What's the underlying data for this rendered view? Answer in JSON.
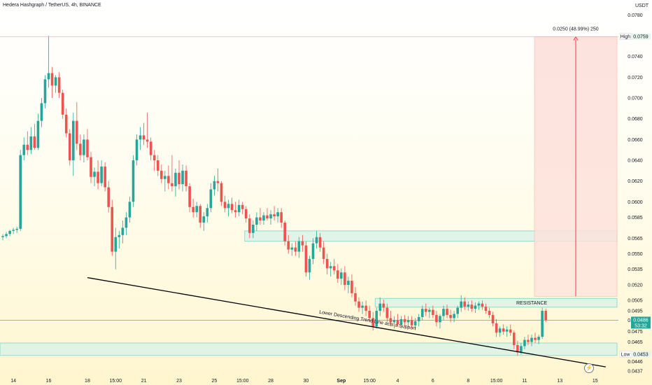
{
  "header": {
    "title": "Hedera Hashgraph / TetherUS, 4h, BINANCE",
    "unit": "USDT"
  },
  "colors": {
    "up": "#26a69a",
    "down": "#ef5350",
    "zone_fill": "#d7f2ea",
    "zone_stroke": "#7fd3c8",
    "measure_fill": "#fde1db",
    "measure_line": "#f23645",
    "price_tag": "#26a69a",
    "trend_line": "#000000"
  },
  "chart_data": {
    "type": "candlestick",
    "title": "Hedera Hashgraph / TetherUS, 4h, BINANCE",
    "ylabel": "USDT",
    "ylim": [
      0.0433,
      0.0785
    ],
    "y_ticks": [
      "0.0780",
      "0.0760",
      "0.0740",
      "0.0720",
      "0.0700",
      "0.0680",
      "0.0660",
      "0.0640",
      "0.0620",
      "0.0600",
      "0.0585",
      "0.0565",
      "0.0550",
      "0.0535",
      "0.0520",
      "0.0505",
      "0.0495",
      "0.0486",
      "0.0475",
      "0.0465",
      "0.0453",
      "0.0446",
      "0.0437"
    ],
    "x_ticks": [
      "14",
      "16",
      "18",
      "15:00",
      "21",
      "23",
      "25",
      "15:00",
      "28",
      "30",
      "Sep",
      "15:00",
      "4",
      "6",
      "8",
      "15:00",
      "11",
      "13",
      "15"
    ],
    "candles": [
      {
        "o": 0.0566,
        "h": 0.0569,
        "l": 0.0563,
        "c": 0.0567
      },
      {
        "o": 0.0567,
        "h": 0.0571,
        "l": 0.0565,
        "c": 0.0569
      },
      {
        "o": 0.0569,
        "h": 0.0573,
        "l": 0.0567,
        "c": 0.0572
      },
      {
        "o": 0.0572,
        "h": 0.0575,
        "l": 0.0569,
        "c": 0.0573
      },
      {
        "o": 0.0573,
        "h": 0.0576,
        "l": 0.057,
        "c": 0.0574
      },
      {
        "o": 0.0574,
        "h": 0.065,
        "l": 0.0572,
        "c": 0.0645
      },
      {
        "o": 0.0645,
        "h": 0.0662,
        "l": 0.064,
        "c": 0.0655
      },
      {
        "o": 0.0655,
        "h": 0.0668,
        "l": 0.0645,
        "c": 0.065
      },
      {
        "o": 0.065,
        "h": 0.0672,
        "l": 0.0646,
        "c": 0.0663
      },
      {
        "o": 0.0663,
        "h": 0.0675,
        "l": 0.065,
        "c": 0.0652
      },
      {
        "o": 0.0652,
        "h": 0.0685,
        "l": 0.065,
        "c": 0.0678
      },
      {
        "o": 0.0678,
        "h": 0.07,
        "l": 0.0672,
        "c": 0.0695
      },
      {
        "o": 0.0695,
        "h": 0.0722,
        "l": 0.069,
        "c": 0.0718
      },
      {
        "o": 0.0718,
        "h": 0.076,
        "l": 0.071,
        "c": 0.0724
      },
      {
        "o": 0.0724,
        "h": 0.073,
        "l": 0.07,
        "c": 0.0712
      },
      {
        "o": 0.0712,
        "h": 0.0722,
        "l": 0.0705,
        "c": 0.072
      },
      {
        "o": 0.072,
        "h": 0.0725,
        "l": 0.07,
        "c": 0.0705
      },
      {
        "o": 0.0705,
        "h": 0.0708,
        "l": 0.068,
        "c": 0.0684
      },
      {
        "o": 0.0684,
        "h": 0.069,
        "l": 0.0662,
        "c": 0.0666
      },
      {
        "o": 0.0666,
        "h": 0.067,
        "l": 0.0635,
        "c": 0.064
      },
      {
        "o": 0.064,
        "h": 0.0686,
        "l": 0.0625,
        "c": 0.0678
      },
      {
        "o": 0.0678,
        "h": 0.0696,
        "l": 0.065,
        "c": 0.0656
      },
      {
        "o": 0.0656,
        "h": 0.0665,
        "l": 0.064,
        "c": 0.0645
      },
      {
        "o": 0.0645,
        "h": 0.0665,
        "l": 0.0638,
        "c": 0.066
      },
      {
        "o": 0.066,
        "h": 0.067,
        "l": 0.064,
        "c": 0.0643
      },
      {
        "o": 0.0643,
        "h": 0.0648,
        "l": 0.0618,
        "c": 0.0624
      },
      {
        "o": 0.0624,
        "h": 0.0633,
        "l": 0.0615,
        "c": 0.0629
      },
      {
        "o": 0.0629,
        "h": 0.064,
        "l": 0.0612,
        "c": 0.0618
      },
      {
        "o": 0.0618,
        "h": 0.064,
        "l": 0.0615,
        "c": 0.0634
      },
      {
        "o": 0.0634,
        "h": 0.0638,
        "l": 0.061,
        "c": 0.0614
      },
      {
        "o": 0.0614,
        "h": 0.062,
        "l": 0.059,
        "c": 0.0595
      },
      {
        "o": 0.0595,
        "h": 0.0602,
        "l": 0.0548,
        "c": 0.0552
      },
      {
        "o": 0.0552,
        "h": 0.0575,
        "l": 0.0535,
        "c": 0.0566
      },
      {
        "o": 0.0566,
        "h": 0.0572,
        "l": 0.0555,
        "c": 0.0568
      },
      {
        "o": 0.0568,
        "h": 0.0582,
        "l": 0.056,
        "c": 0.0575
      },
      {
        "o": 0.0575,
        "h": 0.059,
        "l": 0.0568,
        "c": 0.0585
      },
      {
        "o": 0.0585,
        "h": 0.0605,
        "l": 0.058,
        "c": 0.06
      },
      {
        "o": 0.06,
        "h": 0.0645,
        "l": 0.0595,
        "c": 0.064
      },
      {
        "o": 0.064,
        "h": 0.0665,
        "l": 0.0635,
        "c": 0.066
      },
      {
        "o": 0.066,
        "h": 0.0672,
        "l": 0.065,
        "c": 0.0664
      },
      {
        "o": 0.0664,
        "h": 0.0676,
        "l": 0.0655,
        "c": 0.066
      },
      {
        "o": 0.066,
        "h": 0.0686,
        "l": 0.0652,
        "c": 0.0658
      },
      {
        "o": 0.0658,
        "h": 0.0662,
        "l": 0.064,
        "c": 0.0645
      },
      {
        "o": 0.0645,
        "h": 0.065,
        "l": 0.063,
        "c": 0.064
      },
      {
        "o": 0.064,
        "h": 0.0645,
        "l": 0.0625,
        "c": 0.063
      },
      {
        "o": 0.063,
        "h": 0.0636,
        "l": 0.0618,
        "c": 0.0622
      },
      {
        "o": 0.0622,
        "h": 0.063,
        "l": 0.061,
        "c": 0.0625
      },
      {
        "o": 0.0625,
        "h": 0.0635,
        "l": 0.0612,
        "c": 0.0618
      },
      {
        "o": 0.0618,
        "h": 0.0645,
        "l": 0.061,
        "c": 0.0615
      },
      {
        "o": 0.0615,
        "h": 0.0632,
        "l": 0.0605,
        "c": 0.0628
      },
      {
        "o": 0.0628,
        "h": 0.064,
        "l": 0.0612,
        "c": 0.0617
      },
      {
        "o": 0.0617,
        "h": 0.0636,
        "l": 0.061,
        "c": 0.063
      },
      {
        "o": 0.063,
        "h": 0.0635,
        "l": 0.061,
        "c": 0.0615
      },
      {
        "o": 0.0615,
        "h": 0.0618,
        "l": 0.059,
        "c": 0.0595
      },
      {
        "o": 0.0595,
        "h": 0.0603,
        "l": 0.0585,
        "c": 0.059
      },
      {
        "o": 0.059,
        "h": 0.06,
        "l": 0.0585,
        "c": 0.0596
      },
      {
        "o": 0.0596,
        "h": 0.0598,
        "l": 0.0575,
        "c": 0.058
      },
      {
        "o": 0.058,
        "h": 0.059,
        "l": 0.0572,
        "c": 0.0586
      },
      {
        "o": 0.0586,
        "h": 0.0598,
        "l": 0.058,
        "c": 0.0594
      },
      {
        "o": 0.0594,
        "h": 0.0618,
        "l": 0.059,
        "c": 0.0612
      },
      {
        "o": 0.0612,
        "h": 0.0625,
        "l": 0.0606,
        "c": 0.062
      },
      {
        "o": 0.062,
        "h": 0.0632,
        "l": 0.061,
        "c": 0.0618
      },
      {
        "o": 0.0618,
        "h": 0.062,
        "l": 0.0596,
        "c": 0.06
      },
      {
        "o": 0.06,
        "h": 0.0606,
        "l": 0.059,
        "c": 0.0594
      },
      {
        "o": 0.0594,
        "h": 0.0602,
        "l": 0.0586,
        "c": 0.0598
      },
      {
        "o": 0.0598,
        "h": 0.0604,
        "l": 0.0589,
        "c": 0.0592
      },
      {
        "o": 0.0592,
        "h": 0.06,
        "l": 0.0585,
        "c": 0.059
      },
      {
        "o": 0.059,
        "h": 0.0602,
        "l": 0.0586,
        "c": 0.0597
      },
      {
        "o": 0.0597,
        "h": 0.06,
        "l": 0.0588,
        "c": 0.0593
      },
      {
        "o": 0.0593,
        "h": 0.0596,
        "l": 0.058,
        "c": 0.0584
      },
      {
        "o": 0.0584,
        "h": 0.0588,
        "l": 0.0565,
        "c": 0.057
      },
      {
        "o": 0.057,
        "h": 0.0582,
        "l": 0.0565,
        "c": 0.0578
      },
      {
        "o": 0.0578,
        "h": 0.059,
        "l": 0.0572,
        "c": 0.0585
      },
      {
        "o": 0.0585,
        "h": 0.0594,
        "l": 0.0578,
        "c": 0.0582
      },
      {
        "o": 0.0582,
        "h": 0.059,
        "l": 0.0578,
        "c": 0.0587
      },
      {
        "o": 0.0587,
        "h": 0.0594,
        "l": 0.0582,
        "c": 0.0584
      },
      {
        "o": 0.0584,
        "h": 0.0592,
        "l": 0.0578,
        "c": 0.0588
      },
      {
        "o": 0.0588,
        "h": 0.0596,
        "l": 0.0582,
        "c": 0.0586
      },
      {
        "o": 0.0586,
        "h": 0.0594,
        "l": 0.058,
        "c": 0.059
      },
      {
        "o": 0.059,
        "h": 0.0594,
        "l": 0.0575,
        "c": 0.058
      },
      {
        "o": 0.058,
        "h": 0.0582,
        "l": 0.0558,
        "c": 0.0562
      },
      {
        "o": 0.0562,
        "h": 0.0568,
        "l": 0.055,
        "c": 0.0554
      },
      {
        "o": 0.0554,
        "h": 0.056,
        "l": 0.0548,
        "c": 0.0556
      },
      {
        "o": 0.0556,
        "h": 0.0562,
        "l": 0.0548,
        "c": 0.0552
      },
      {
        "o": 0.0552,
        "h": 0.0566,
        "l": 0.0546,
        "c": 0.0562
      },
      {
        "o": 0.0562,
        "h": 0.0568,
        "l": 0.0552,
        "c": 0.0558
      },
      {
        "o": 0.0558,
        "h": 0.0562,
        "l": 0.0528,
        "c": 0.0532
      },
      {
        "o": 0.0532,
        "h": 0.0548,
        "l": 0.0525,
        "c": 0.0545
      },
      {
        "o": 0.0545,
        "h": 0.0565,
        "l": 0.054,
        "c": 0.056
      },
      {
        "o": 0.056,
        "h": 0.0572,
        "l": 0.0555,
        "c": 0.0566
      },
      {
        "o": 0.0566,
        "h": 0.057,
        "l": 0.0552,
        "c": 0.0556
      },
      {
        "o": 0.0556,
        "h": 0.0562,
        "l": 0.054,
        "c": 0.0545
      },
      {
        "o": 0.0545,
        "h": 0.055,
        "l": 0.053,
        "c": 0.0536
      },
      {
        "o": 0.0536,
        "h": 0.0542,
        "l": 0.0528,
        "c": 0.0538
      },
      {
        "o": 0.0538,
        "h": 0.0545,
        "l": 0.053,
        "c": 0.0534
      },
      {
        "o": 0.0534,
        "h": 0.054,
        "l": 0.0522,
        "c": 0.0526
      },
      {
        "o": 0.0526,
        "h": 0.0536,
        "l": 0.052,
        "c": 0.0532
      },
      {
        "o": 0.0532,
        "h": 0.0538,
        "l": 0.0515,
        "c": 0.052
      },
      {
        "o": 0.052,
        "h": 0.0528,
        "l": 0.0512,
        "c": 0.0524
      },
      {
        "o": 0.0524,
        "h": 0.053,
        "l": 0.0508,
        "c": 0.0512
      },
      {
        "o": 0.0512,
        "h": 0.0518,
        "l": 0.05,
        "c": 0.0504
      },
      {
        "o": 0.0504,
        "h": 0.0508,
        "l": 0.0494,
        "c": 0.0498
      },
      {
        "o": 0.0498,
        "h": 0.0504,
        "l": 0.0492,
        "c": 0.05
      },
      {
        "o": 0.05,
        "h": 0.0505,
        "l": 0.049,
        "c": 0.0495
      },
      {
        "o": 0.0495,
        "h": 0.05,
        "l": 0.0484,
        "c": 0.0488
      },
      {
        "o": 0.0488,
        "h": 0.0494,
        "l": 0.0476,
        "c": 0.048
      },
      {
        "o": 0.048,
        "h": 0.0498,
        "l": 0.0478,
        "c": 0.0495
      },
      {
        "o": 0.0495,
        "h": 0.0508,
        "l": 0.049,
        "c": 0.0502
      },
      {
        "o": 0.0502,
        "h": 0.0506,
        "l": 0.0494,
        "c": 0.0498
      },
      {
        "o": 0.0498,
        "h": 0.0502,
        "l": 0.0484,
        "c": 0.0488
      },
      {
        "o": 0.0488,
        "h": 0.0495,
        "l": 0.048,
        "c": 0.0484
      },
      {
        "o": 0.0484,
        "h": 0.049,
        "l": 0.0478,
        "c": 0.0486
      },
      {
        "o": 0.0486,
        "h": 0.0492,
        "l": 0.048,
        "c": 0.0482
      },
      {
        "o": 0.0482,
        "h": 0.049,
        "l": 0.0478,
        "c": 0.0487
      },
      {
        "o": 0.0487,
        "h": 0.0491,
        "l": 0.048,
        "c": 0.0484
      },
      {
        "o": 0.0484,
        "h": 0.049,
        "l": 0.0479,
        "c": 0.0486
      },
      {
        "o": 0.0486,
        "h": 0.049,
        "l": 0.0478,
        "c": 0.0481
      },
      {
        "o": 0.0481,
        "h": 0.0488,
        "l": 0.0477,
        "c": 0.0485
      },
      {
        "o": 0.0485,
        "h": 0.0492,
        "l": 0.048,
        "c": 0.0489
      },
      {
        "o": 0.0489,
        "h": 0.05,
        "l": 0.0486,
        "c": 0.0497
      },
      {
        "o": 0.0497,
        "h": 0.0502,
        "l": 0.049,
        "c": 0.0494
      },
      {
        "o": 0.0494,
        "h": 0.0498,
        "l": 0.0488,
        "c": 0.0496
      },
      {
        "o": 0.0496,
        "h": 0.05,
        "l": 0.0488,
        "c": 0.0491
      },
      {
        "o": 0.0491,
        "h": 0.0495,
        "l": 0.048,
        "c": 0.0484
      },
      {
        "o": 0.0484,
        "h": 0.0492,
        "l": 0.0478,
        "c": 0.049
      },
      {
        "o": 0.049,
        "h": 0.05,
        "l": 0.0486,
        "c": 0.0497
      },
      {
        "o": 0.0497,
        "h": 0.0501,
        "l": 0.0488,
        "c": 0.0491
      },
      {
        "o": 0.0491,
        "h": 0.0496,
        "l": 0.0484,
        "c": 0.0488
      },
      {
        "o": 0.0488,
        "h": 0.0495,
        "l": 0.0484,
        "c": 0.0492
      },
      {
        "o": 0.0492,
        "h": 0.05,
        "l": 0.0488,
        "c": 0.0498
      },
      {
        "o": 0.0498,
        "h": 0.051,
        "l": 0.0494,
        "c": 0.0504
      },
      {
        "o": 0.0504,
        "h": 0.0508,
        "l": 0.0496,
        "c": 0.0499
      },
      {
        "o": 0.0499,
        "h": 0.0504,
        "l": 0.0495,
        "c": 0.0501
      },
      {
        "o": 0.0501,
        "h": 0.0505,
        "l": 0.0494,
        "c": 0.0497
      },
      {
        "o": 0.0497,
        "h": 0.0503,
        "l": 0.0493,
        "c": 0.05
      },
      {
        "o": 0.05,
        "h": 0.0504,
        "l": 0.0496,
        "c": 0.0502
      },
      {
        "o": 0.0502,
        "h": 0.0505,
        "l": 0.0496,
        "c": 0.0499
      },
      {
        "o": 0.0499,
        "h": 0.0502,
        "l": 0.0492,
        "c": 0.0495
      },
      {
        "o": 0.0495,
        "h": 0.0498,
        "l": 0.0488,
        "c": 0.0491
      },
      {
        "o": 0.0491,
        "h": 0.0494,
        "l": 0.048,
        "c": 0.0483
      },
      {
        "o": 0.0483,
        "h": 0.0487,
        "l": 0.047,
        "c": 0.0474
      },
      {
        "o": 0.0474,
        "h": 0.048,
        "l": 0.047,
        "c": 0.0478
      },
      {
        "o": 0.0478,
        "h": 0.0482,
        "l": 0.0472,
        "c": 0.0475
      },
      {
        "o": 0.0475,
        "h": 0.048,
        "l": 0.047,
        "c": 0.0477
      },
      {
        "o": 0.0477,
        "h": 0.0482,
        "l": 0.0471,
        "c": 0.0474
      },
      {
        "o": 0.0474,
        "h": 0.0476,
        "l": 0.0458,
        "c": 0.0462
      },
      {
        "o": 0.0462,
        "h": 0.0466,
        "l": 0.0452,
        "c": 0.0455
      },
      {
        "o": 0.0455,
        "h": 0.0464,
        "l": 0.0453,
        "c": 0.0461
      },
      {
        "o": 0.0461,
        "h": 0.047,
        "l": 0.0458,
        "c": 0.0467
      },
      {
        "o": 0.0467,
        "h": 0.0472,
        "l": 0.0462,
        "c": 0.0465
      },
      {
        "o": 0.0465,
        "h": 0.0472,
        "l": 0.0461,
        "c": 0.0469
      },
      {
        "o": 0.0469,
        "h": 0.0474,
        "l": 0.0464,
        "c": 0.0467
      },
      {
        "o": 0.0467,
        "h": 0.0472,
        "l": 0.0463,
        "c": 0.047
      },
      {
        "o": 0.047,
        "h": 0.0498,
        "l": 0.0468,
        "c": 0.0495
      },
      {
        "o": 0.0495,
        "h": 0.0497,
        "l": 0.0484,
        "c": 0.0486
      }
    ],
    "zones": [
      {
        "from_index": 69,
        "to_index": 170,
        "low": 0.0562,
        "high": 0.0572,
        "label": ""
      },
      {
        "from_index": 106,
        "to_index": 170,
        "low": 0.04985,
        "high": 0.0507,
        "label": "RESISTANCE"
      },
      {
        "from_index": 0,
        "to_index": 170,
        "low": 0.0452,
        "high": 0.0464,
        "label": ""
      }
    ],
    "trend_line": {
      "from": {
        "index": 24,
        "price": 0.0527
      },
      "to": {
        "index": 171,
        "price": 0.0441
      },
      "label": "Lower Descending Trend Line acts a Support"
    },
    "measure": {
      "from_index": 150,
      "to_index": 170,
      "low": 0.0509,
      "high": 0.0759,
      "label": "0.0250 (48.99%) 250"
    },
    "last_price": {
      "value": 0.0486,
      "label": "0.0486",
      "countdown": "53:32"
    },
    "high_marker": {
      "label": "High",
      "value": 0.0759,
      "text": "0.0759"
    },
    "low_marker": {
      "label": "Low",
      "value": 0.0453,
      "text": "0.0453"
    }
  }
}
